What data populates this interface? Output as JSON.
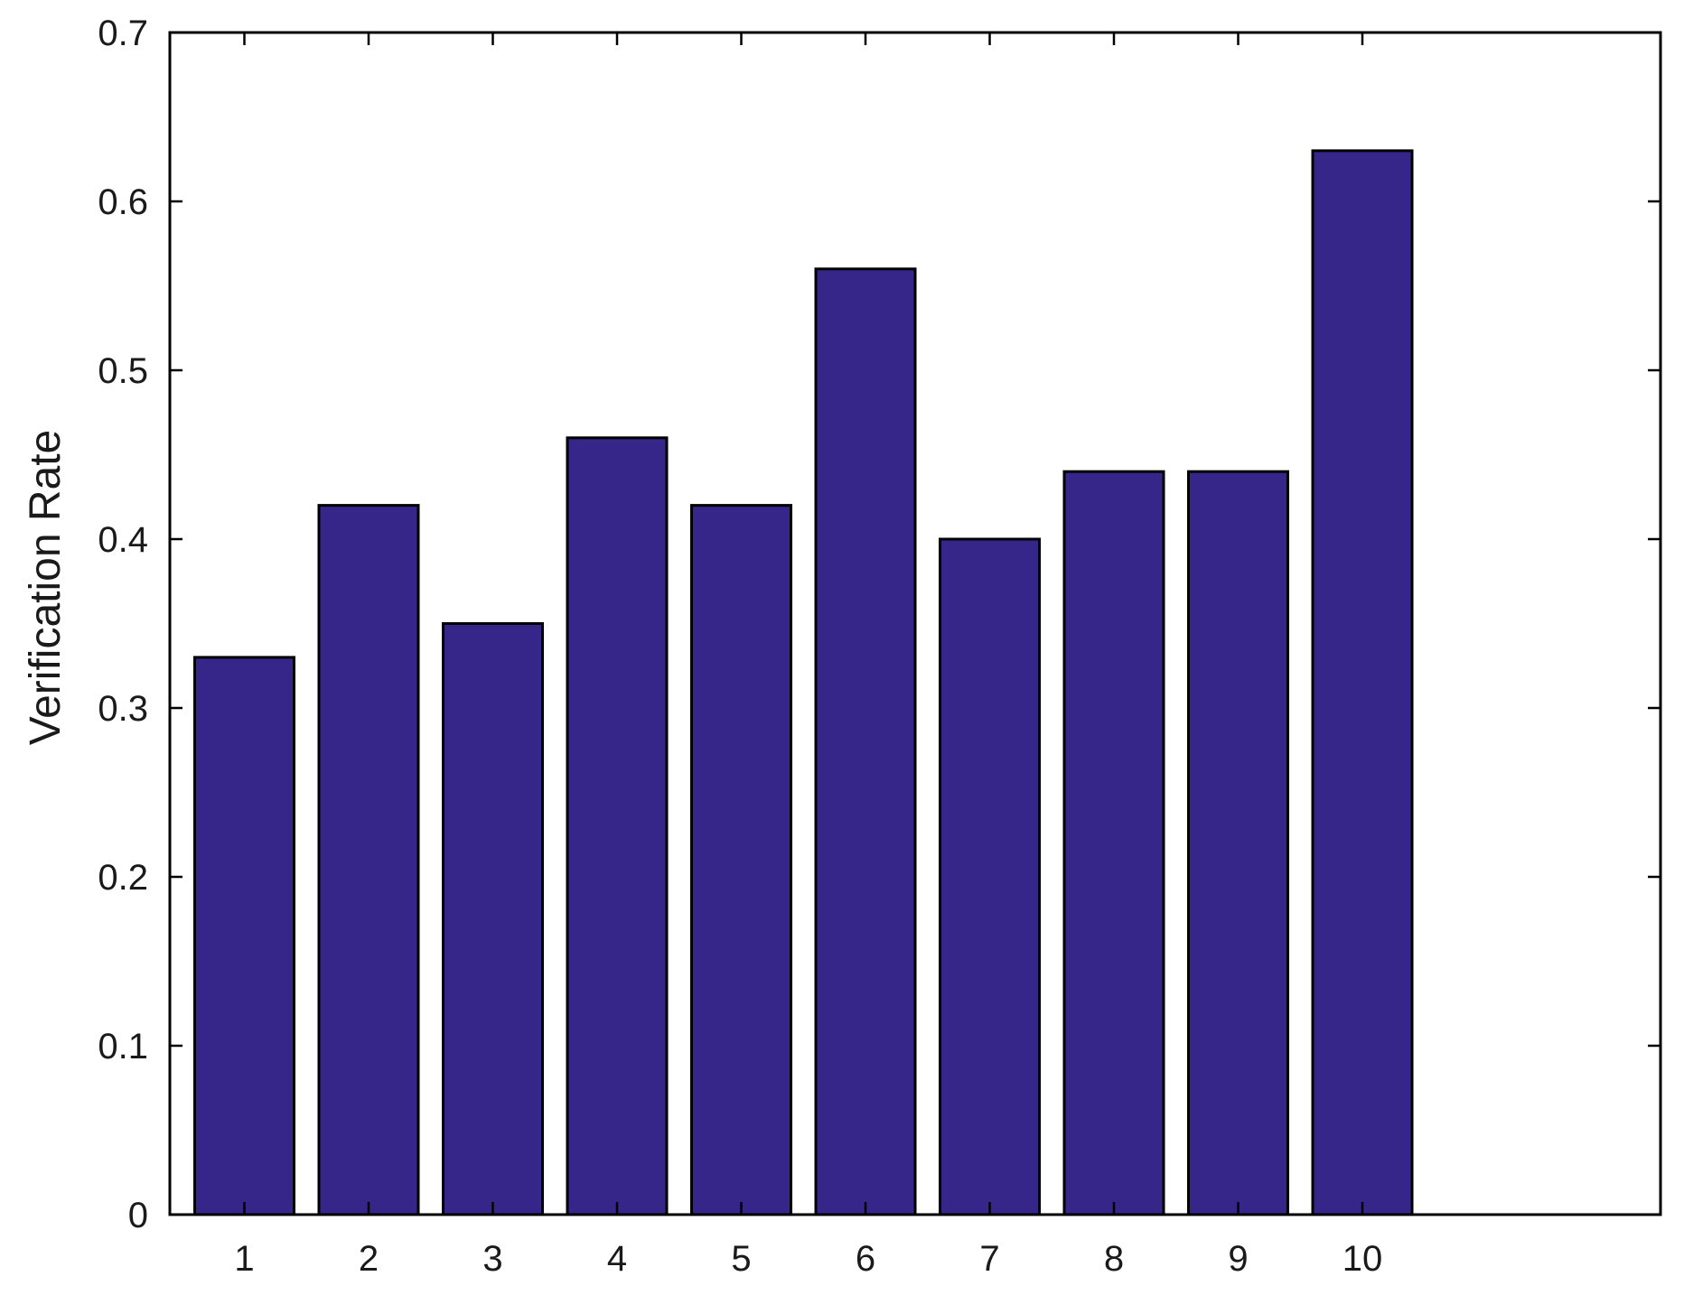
{
  "chart_data": {
    "type": "bar",
    "title": "",
    "xlabel": "",
    "ylabel": "Verification Rate",
    "categories": [
      "1",
      "2",
      "3",
      "4",
      "5",
      "6",
      "7",
      "8",
      "9",
      "10"
    ],
    "values": [
      0.33,
      0.42,
      0.35,
      0.46,
      0.42,
      0.56,
      0.4,
      0.44,
      0.44,
      0.63
    ],
    "ylim": [
      0,
      0.7
    ],
    "xlim": [
      0.4,
      12.4
    ],
    "yticks": [
      0,
      0.1,
      0.2,
      0.3,
      0.4,
      0.5,
      0.6,
      0.7
    ],
    "ytick_labels": [
      "0",
      "0.1",
      "0.2",
      "0.3",
      "0.4",
      "0.5",
      "0.6",
      "0.7"
    ],
    "xticks": [
      1,
      2,
      3,
      4,
      5,
      6,
      7,
      8,
      9,
      10
    ],
    "grid": false,
    "legend": "none",
    "bar_color": "#362689",
    "edge_color": "#000000"
  }
}
